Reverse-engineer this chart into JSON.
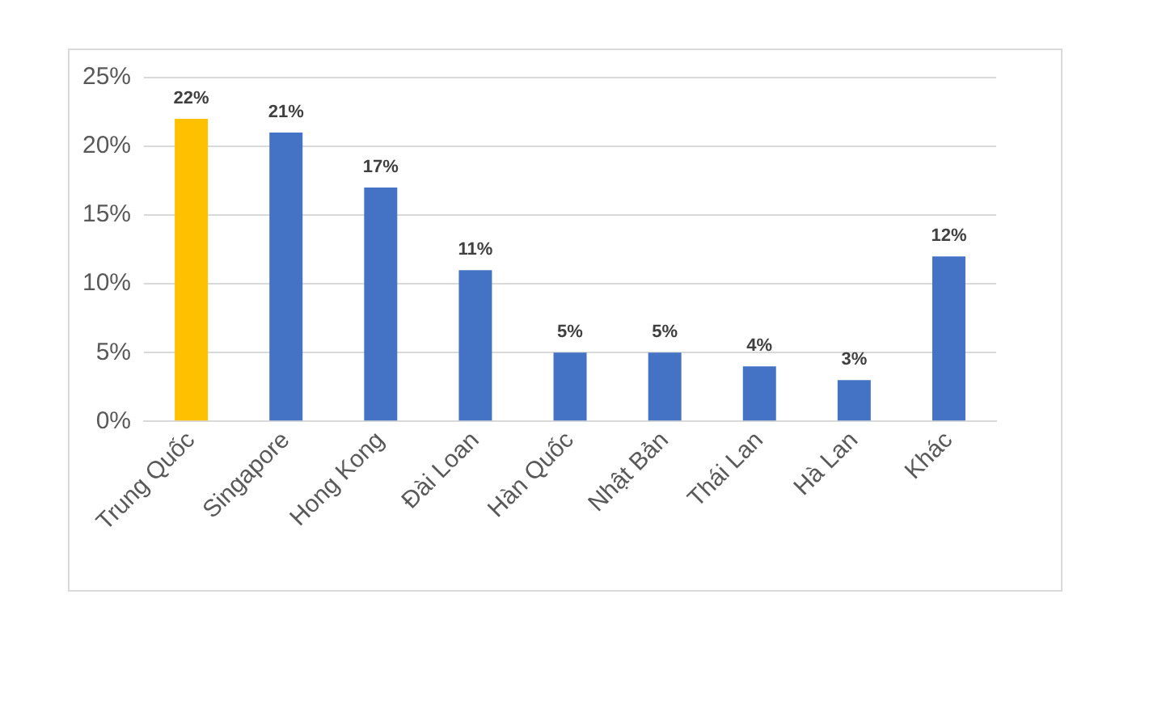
{
  "chart_data": {
    "type": "bar",
    "categories": [
      "Trung Quốc",
      "Singapore",
      "Hong Kong",
      "Đài Loan",
      "Hàn Quốc",
      "Nhật Bản",
      "Thái Lan",
      "Hà Lan",
      "Khác"
    ],
    "values": [
      22,
      21,
      17,
      11,
      5,
      5,
      4,
      3,
      12
    ],
    "colors": [
      "#ffc000",
      "#4472c4",
      "#4472c4",
      "#4472c4",
      "#4472c4",
      "#4472c4",
      "#4472c4",
      "#4472c4",
      "#4472c4"
    ],
    "value_labels": [
      "22%",
      "21%",
      "17%",
      "11%",
      "5%",
      "5%",
      "4%",
      "3%",
      "12%"
    ],
    "ylim": [
      0,
      25
    ],
    "yticks": [
      {
        "value": 0,
        "label": "0%"
      },
      {
        "value": 5,
        "label": "5%"
      },
      {
        "value": 10,
        "label": "10%"
      },
      {
        "value": 15,
        "label": "15%"
      },
      {
        "value": 20,
        "label": "20%"
      },
      {
        "value": 25,
        "label": "25%"
      }
    ],
    "grid": "y"
  }
}
